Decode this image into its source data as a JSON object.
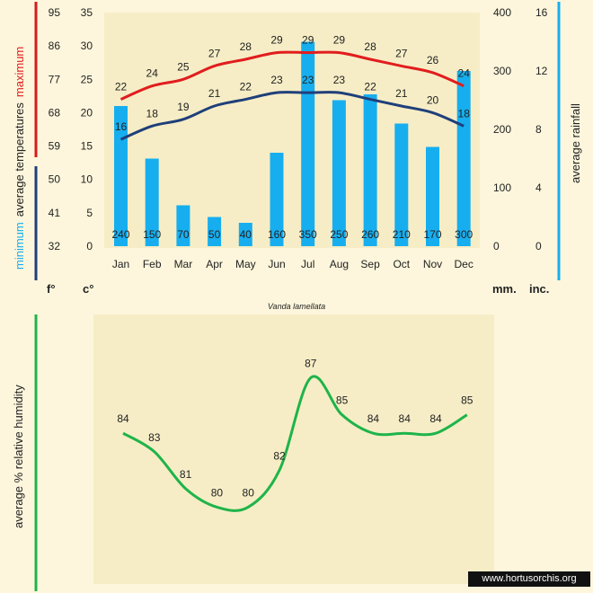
{
  "chart_data": [
    {
      "type": "bar+line",
      "title": "Vanda lamellata",
      "categories": [
        "Jan",
        "Feb",
        "Mar",
        "Apr",
        "May",
        "Jun",
        "Jul",
        "Aug",
        "Sep",
        "Oct",
        "Nov",
        "Dec"
      ],
      "rainfall_mm": [
        240,
        150,
        70,
        50,
        40,
        160,
        350,
        250,
        260,
        210,
        170,
        300
      ],
      "max_temp_c": [
        22,
        24,
        25,
        27,
        28,
        29,
        29,
        29,
        28,
        27,
        26,
        24
      ],
      "min_temp_c": [
        16,
        18,
        19,
        21,
        22,
        23,
        23,
        23,
        22,
        21,
        20,
        18
      ],
      "left_axis": {
        "label_prefix": "average temperatures",
        "max_label": "maximum",
        "min_label": "minimum",
        "celsius_ticks": [
          "35",
          "30",
          "25",
          "20",
          "15",
          "10",
          "5",
          "0"
        ],
        "fahrenheit_ticks": [
          "95",
          "86",
          "77",
          "68",
          "59",
          "50",
          "41",
          "32"
        ],
        "c_range": [
          0,
          35
        ],
        "unit_f": "f°",
        "unit_c": "c°"
      },
      "right_axis": {
        "label": "average rainfall",
        "mm_ticks": [
          "400",
          "300",
          "200",
          "100",
          "0"
        ],
        "inch_ticks": [
          "16",
          "12",
          "8",
          "4",
          "0"
        ],
        "mm_range": [
          0,
          400
        ],
        "unit_mm": "mm.",
        "unit_inch": "inc."
      },
      "colors": {
        "max": "#e11d1d",
        "min": "#1f3f7a",
        "bars": "#17aeef"
      }
    },
    {
      "type": "line",
      "ylabel": "average %  relative humidity",
      "values": [
        84,
        83,
        81,
        80,
        80,
        82,
        87,
        85,
        84,
        84,
        84,
        85
      ],
      "ylim": [
        79,
        88
      ],
      "color": "#1fb44a"
    }
  ],
  "credit": "www.hortusorchis.org"
}
